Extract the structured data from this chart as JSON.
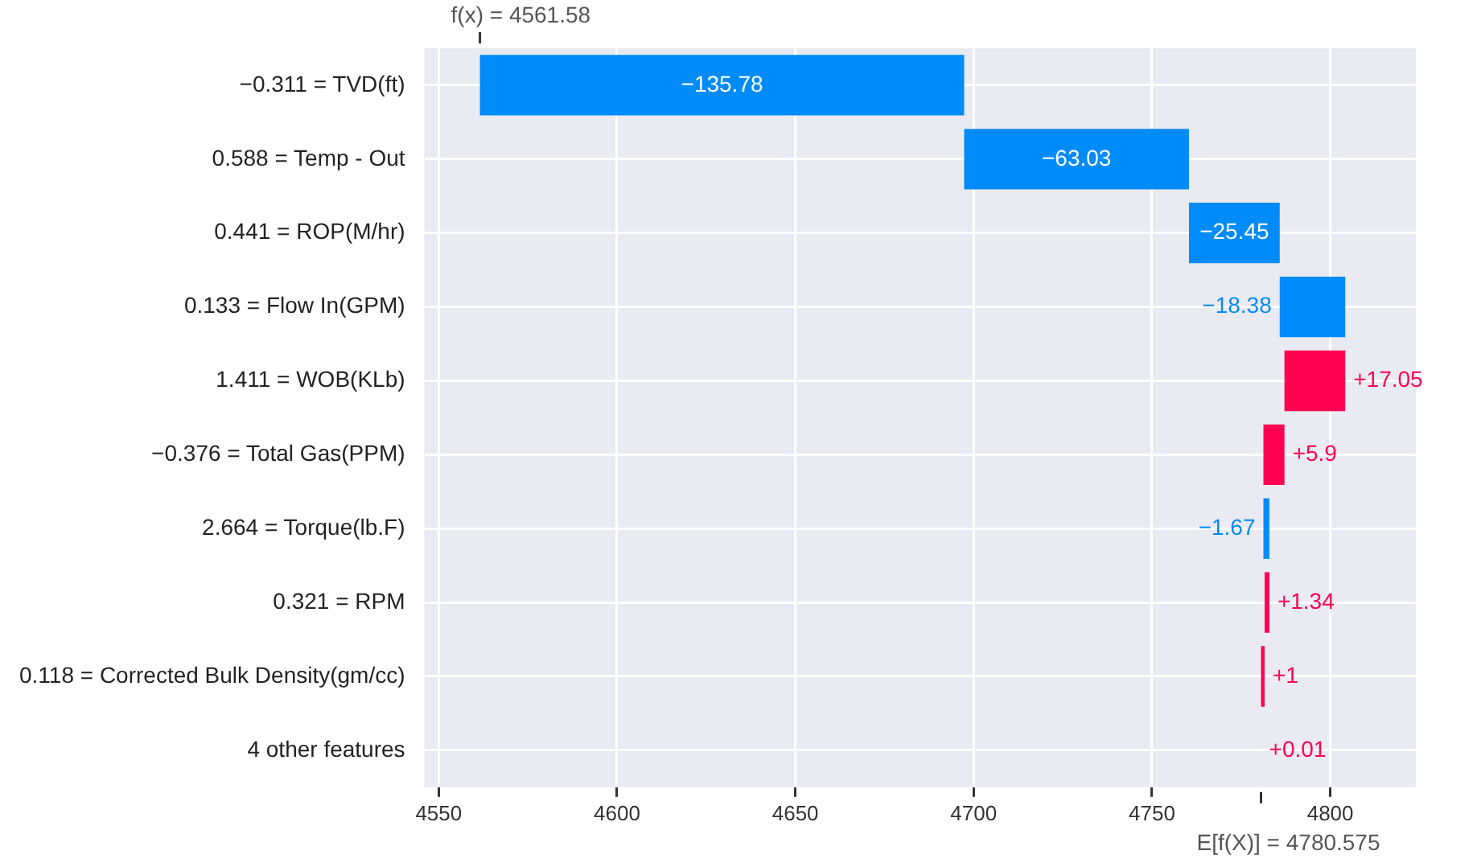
{
  "chart_data": {
    "type": "bar",
    "orientation": "horizontal",
    "categories": [
      "−0.311 = TVD(ft)",
      "0.588 = Temp - Out",
      "0.441 = ROP(M/hr)",
      "0.133 = Flow In(GPM)",
      "1.411 = WOB(KLb)",
      "−0.376 = Total Gas(PPM)",
      "2.664 = Torque(lb.F)",
      "0.321 = RPM",
      "0.118 = Corrected Bulk Density(gm/cc)",
      "4 other features"
    ],
    "values": [
      -135.78,
      -63.03,
      -25.45,
      -18.38,
      17.05,
      5.9,
      -1.67,
      1.34,
      1,
      0.01
    ],
    "base": [
      4697.345,
      4760.375,
      4785.825,
      4804.205,
      4787.155,
      4781.255,
      4782.925,
      4781.585,
      4780.585,
      4780.575
    ],
    "colors": [
      "#008bfb",
      "#008bfb",
      "#008bfb",
      "#008bfb",
      "#ff0051",
      "#ff0051",
      "#008bfb",
      "#ff0051",
      "#ff0051",
      "#ff0051"
    ],
    "value_labels": [
      "−135.78",
      "−63.03",
      "−25.45",
      "−18.38",
      "+17.05",
      "+5.9",
      "−1.67",
      "+1.34",
      "+1",
      "+0.01"
    ],
    "xlim": [
      4546,
      4824
    ],
    "xticks": [
      4550,
      4600,
      4650,
      4700,
      4750,
      4800
    ],
    "grid": true,
    "annotations": [
      "f(x) = 4561.58",
      "E[f(X)] = 4780.575"
    ]
  }
}
